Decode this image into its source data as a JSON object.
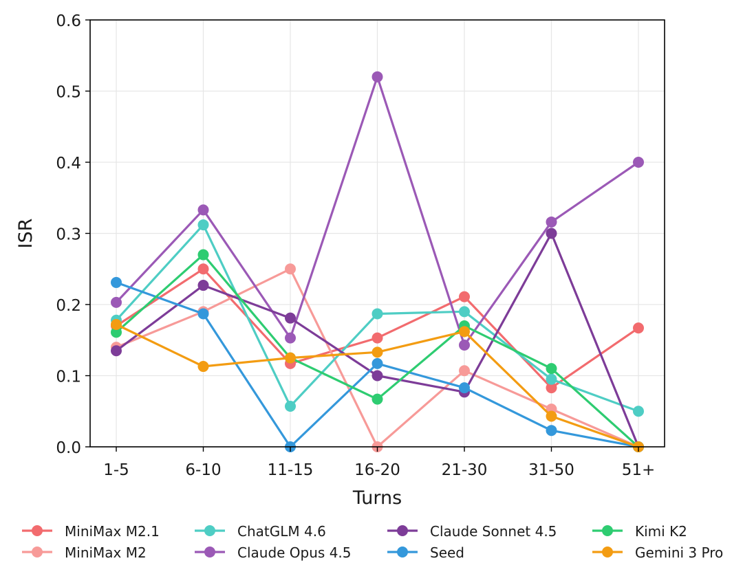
{
  "chart_data": {
    "type": "line",
    "title": "",
    "xlabel": "Turns",
    "ylabel": "ISR",
    "categories": [
      "1-5",
      "6-10",
      "11-15",
      "16-20",
      "21-30",
      "31-50",
      "51+"
    ],
    "ylim": [
      0.0,
      0.6
    ],
    "yticks": [
      0.0,
      0.1,
      0.2,
      0.3,
      0.4,
      0.5,
      0.6
    ],
    "ytick_labels": [
      "0.0",
      "0.1",
      "0.2",
      "0.3",
      "0.4",
      "0.5",
      "0.6"
    ],
    "grid": true,
    "legend_position": "bottom",
    "series": [
      {
        "name": "MiniMax M2.1",
        "color": "#f26b6e",
        "values": [
          0.17,
          0.25,
          0.117,
          0.153,
          0.211,
          0.083,
          0.167
        ]
      },
      {
        "name": "MiniMax M2",
        "color": "#f79a98",
        "values": [
          0.14,
          0.19,
          0.25,
          0.0,
          0.107,
          0.053,
          0.0
        ]
      },
      {
        "name": "ChatGLM 4.6",
        "color": "#4ecdc4",
        "values": [
          0.178,
          0.312,
          0.057,
          0.187,
          0.19,
          0.095,
          0.05
        ]
      },
      {
        "name": "Claude Opus 4.5",
        "color": "#9b59b6",
        "values": [
          0.203,
          0.333,
          0.153,
          0.52,
          0.143,
          0.316,
          0.4
        ]
      },
      {
        "name": "Claude Sonnet 4.5",
        "color": "#7d3c98",
        "values": [
          0.135,
          0.227,
          0.181,
          0.1,
          0.077,
          0.3,
          0.0
        ]
      },
      {
        "name": "Seed",
        "color": "#3498db",
        "values": [
          0.231,
          0.187,
          0.0,
          0.117,
          0.083,
          0.023,
          0.0
        ]
      },
      {
        "name": "Kimi K2",
        "color": "#2ecc71",
        "values": [
          0.161,
          0.27,
          0.125,
          0.067,
          0.17,
          0.11,
          0.0
        ]
      },
      {
        "name": "Gemini 3 Pro",
        "color": "#f39c12",
        "values": [
          0.172,
          0.113,
          0.125,
          0.133,
          0.162,
          0.043,
          0.0
        ]
      }
    ]
  }
}
